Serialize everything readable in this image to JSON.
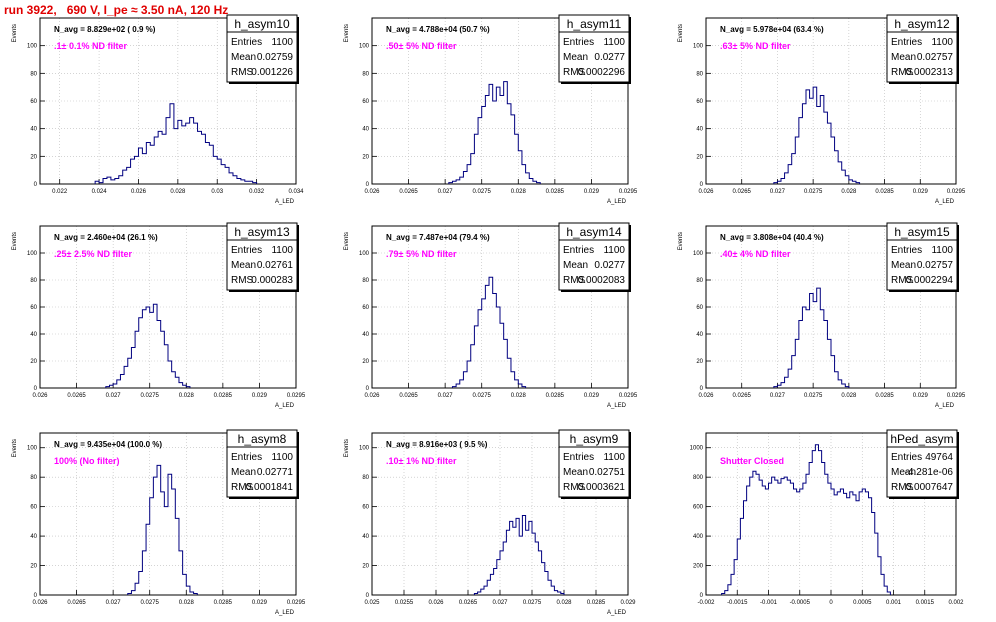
{
  "header": {
    "title": "run 3922,   690 V, I_pe ≈ 3.50 nA, 120 Hz"
  },
  "stats_labels": {
    "entries": "Entries",
    "mean": "Mean",
    "rms": "RMS"
  },
  "colors": {
    "hist": "#000080",
    "title": "#e00000",
    "filter_text": "#ff00ff",
    "grid": "#bbbbbb"
  },
  "chart_data": [
    {
      "type": "bar",
      "name": "h_asym10",
      "ylabel": "Events",
      "xlabel": "A_LED",
      "xlim": [
        0.021,
        0.034
      ],
      "ylim": [
        0,
        120
      ],
      "xticks": [
        "0.022",
        "0.024",
        "0.026",
        "0.028",
        "0.03",
        "0.032",
        "0.034"
      ],
      "yticks": [
        "0",
        "20",
        "40",
        "60",
        "80",
        "100"
      ],
      "navg": "N_avg = 8.829e+02 ( 0.9 %)",
      "filter": ".1± 0.1% ND filter",
      "entries": "1100",
      "mean": "0.02759",
      "rms": "0.001226",
      "bins": {
        "start": 0.0238,
        "width": 0.0002,
        "values": [
          2,
          1,
          4,
          5,
          3,
          4,
          6,
          10,
          12,
          18,
          20,
          26,
          22,
          30,
          28,
          34,
          38,
          36,
          48,
          58,
          40,
          46,
          42,
          44,
          48,
          44,
          38,
          36,
          30,
          28,
          20,
          18,
          14,
          12,
          8,
          6,
          4,
          3,
          2,
          2,
          1
        ]
      }
    },
    {
      "type": "bar",
      "name": "h_asym11",
      "ylabel": "Events",
      "xlabel": "A_LED",
      "xlim": [
        0.026,
        0.0295
      ],
      "ylim": [
        0,
        120
      ],
      "xticks": [
        "0.026",
        "0.0265",
        "0.027",
        "0.0275",
        "0.028",
        "0.0285",
        "0.029",
        "0.0295"
      ],
      "yticks": [
        "0",
        "20",
        "40",
        "60",
        "80",
        "100"
      ],
      "navg": "N_avg = 4.788e+04 (50.7 %)",
      "filter": ".50± 5% ND filter",
      "entries": "1100",
      "mean": "0.0277",
      "rms": "0.0002296",
      "bins": {
        "start": 0.02705,
        "width": 5e-05,
        "values": [
          1,
          2,
          3,
          5,
          9,
          14,
          22,
          36,
          48,
          56,
          64,
          72,
          60,
          70,
          64,
          74,
          58,
          50,
          36,
          24,
          14,
          8,
          4,
          2,
          1
        ]
      }
    },
    {
      "type": "bar",
      "name": "h_asym12",
      "ylabel": "Events",
      "xlabel": "A_LED",
      "xlim": [
        0.026,
        0.0295
      ],
      "ylim": [
        0,
        120
      ],
      "xticks": [
        "0.026",
        "0.0265",
        "0.027",
        "0.0275",
        "0.028",
        "0.0285",
        "0.029",
        "0.0295"
      ],
      "yticks": [
        "0",
        "20",
        "40",
        "60",
        "80",
        "100"
      ],
      "navg": "N_avg = 5.978e+04 (63.4 %)",
      "filter": ".63± 5% ND filter",
      "entries": "1100",
      "mean": "0.02757",
      "rms": "0.0002313",
      "bins": {
        "start": 0.02695,
        "width": 5e-05,
        "values": [
          1,
          2,
          4,
          8,
          14,
          22,
          34,
          48,
          58,
          68,
          62,
          70,
          56,
          64,
          52,
          44,
          34,
          24,
          16,
          10,
          6,
          3,
          2,
          1
        ]
      }
    },
    {
      "type": "bar",
      "name": "h_asym13",
      "ylabel": "Events",
      "xlabel": "A_LED",
      "xlim": [
        0.026,
        0.0295
      ],
      "ylim": [
        0,
        120
      ],
      "xticks": [
        "0.026",
        "0.0265",
        "0.027",
        "0.0275",
        "0.028",
        "0.0285",
        "0.029",
        "0.0295"
      ],
      "yticks": [
        "0",
        "20",
        "40",
        "60",
        "80",
        "100"
      ],
      "navg": "N_avg = 2.460e+04 (26.1 %)",
      "filter": ".25± 2.5% ND filter",
      "entries": "1100",
      "mean": "0.02761",
      "rms": "0.000283",
      "bins": {
        "start": 0.0269,
        "width": 5e-05,
        "values": [
          1,
          2,
          3,
          6,
          10,
          16,
          22,
          30,
          42,
          52,
          58,
          60,
          56,
          62,
          50,
          42,
          32,
          20,
          12,
          8,
          4,
          2,
          1
        ]
      }
    },
    {
      "type": "bar",
      "name": "h_asym14",
      "ylabel": "Events",
      "xlabel": "A_LED",
      "xlim": [
        0.026,
        0.0295
      ],
      "ylim": [
        0,
        120
      ],
      "xticks": [
        "0.026",
        "0.0265",
        "0.027",
        "0.0275",
        "0.028",
        "0.0285",
        "0.029",
        "0.0295"
      ],
      "yticks": [
        "0",
        "20",
        "40",
        "60",
        "80",
        "100"
      ],
      "navg": "N_avg = 7.487e+04 (79.4 %)",
      "filter": ".79± 5% ND filter",
      "entries": "1100",
      "mean": "0.0277",
      "rms": "0.0002083",
      "bins": {
        "start": 0.0271,
        "width": 5e-05,
        "values": [
          1,
          3,
          6,
          12,
          20,
          32,
          46,
          58,
          66,
          76,
          82,
          70,
          60,
          48,
          36,
          22,
          12,
          6,
          3,
          1
        ]
      }
    },
    {
      "type": "bar",
      "name": "h_asym15",
      "ylabel": "Events",
      "xlabel": "A_LED",
      "xlim": [
        0.026,
        0.0295
      ],
      "ylim": [
        0,
        120
      ],
      "xticks": [
        "0.026",
        "0.0265",
        "0.027",
        "0.0275",
        "0.028",
        "0.0285",
        "0.029",
        "0.0295"
      ],
      "yticks": [
        "0",
        "20",
        "40",
        "60",
        "80",
        "100"
      ],
      "navg": "N_avg = 3.808e+04 (40.4 %)",
      "filter": ".40± 4% ND filter",
      "entries": "1100",
      "mean": "0.02757",
      "rms": "0.0002294",
      "bins": {
        "start": 0.02695,
        "width": 5e-05,
        "values": [
          1,
          2,
          4,
          8,
          14,
          24,
          36,
          50,
          60,
          58,
          70,
          64,
          74,
          58,
          50,
          36,
          24,
          12,
          6,
          3,
          1
        ]
      }
    },
    {
      "type": "bar",
      "name": "h_asym8",
      "ylabel": "Events",
      "xlabel": "A_LED",
      "xlim": [
        0.026,
        0.0295
      ],
      "ylim": [
        0,
        110
      ],
      "xticks": [
        "0.026",
        "0.0265",
        "0.027",
        "0.0275",
        "0.028",
        "0.0285",
        "0.029",
        "0.0295"
      ],
      "yticks": [
        "0",
        "20",
        "40",
        "60",
        "80",
        "100"
      ],
      "navg": "N_avg = 9.435e+04 (100.0 %)",
      "filter": "100% (No filter)",
      "entries": "1100",
      "mean": "0.02771",
      "rms": "0.0001841",
      "bins": {
        "start": 0.0272,
        "width": 5e-05,
        "values": [
          1,
          3,
          8,
          16,
          30,
          48,
          66,
          80,
          88,
          70,
          60,
          82,
          72,
          52,
          30,
          14,
          6,
          2,
          1
        ]
      }
    },
    {
      "type": "bar",
      "name": "h_asym9",
      "ylabel": "Events",
      "xlabel": "A_LED",
      "xlim": [
        0.025,
        0.029
      ],
      "ylim": [
        0,
        110
      ],
      "xticks": [
        "0.025",
        "0.0255",
        "0.026",
        "0.0265",
        "0.027",
        "0.0275",
        "0.028",
        "0.0285",
        "0.029"
      ],
      "yticks": [
        "0",
        "20",
        "40",
        "60",
        "80",
        "100"
      ],
      "navg": "N_avg = 8.916e+03 ( 9.5 %)",
      "filter": ".10± 1% ND filter",
      "entries": "1100",
      "mean": "0.02751",
      "rms": "0.0003621",
      "bins": {
        "start": 0.0266,
        "width": 5e-05,
        "values": [
          1,
          2,
          4,
          6,
          10,
          14,
          18,
          24,
          30,
          36,
          44,
          50,
          46,
          52,
          40,
          54,
          44,
          50,
          42,
          36,
          30,
          22,
          16,
          10,
          6,
          3,
          2,
          1
        ]
      }
    },
    {
      "type": "bar",
      "name": "hPed_asym",
      "ylabel": "",
      "xlabel": "",
      "xlim": [
        -0.002,
        0.002
      ],
      "ylim": [
        0,
        1100
      ],
      "xticks": [
        "-0.002",
        "-0.0015",
        "-0.001",
        "-0.0005",
        "0",
        "0.0005",
        "0.001",
        "0.0015",
        "0.002"
      ],
      "yticks": [
        "0",
        "200",
        "400",
        "600",
        "800",
        "1000"
      ],
      "navg": "",
      "filter": "Shutter Closed",
      "entries": "49764",
      "mean": "-4.281e-06",
      "rms": "0.0007647",
      "bins": {
        "start": -0.00175,
        "width": 5e-05,
        "values": [
          10,
          30,
          70,
          140,
          240,
          380,
          520,
          640,
          740,
          800,
          840,
          820,
          780,
          740,
          720,
          760,
          800,
          780,
          760,
          790,
          800,
          780,
          760,
          720,
          700,
          720,
          760,
          820,
          900,
          980,
          1020,
          980,
          900,
          820,
          760,
          720,
          680,
          700,
          720,
          690,
          660,
          700,
          680,
          640,
          700,
          720,
          700,
          660,
          560,
          420,
          260,
          140,
          60,
          20
        ]
      }
    }
  ]
}
